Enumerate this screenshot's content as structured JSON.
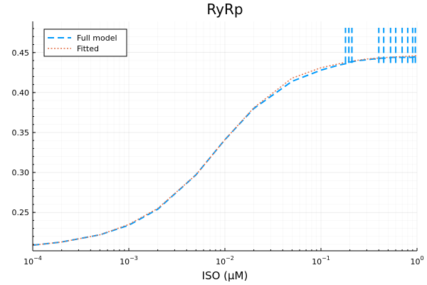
{
  "chart_data": {
    "type": "line",
    "title": "RyRp",
    "xlabel": "ISO (μM)",
    "ylabel": "",
    "xscale": "log",
    "xlim": [
      0.0001,
      1
    ],
    "ylim": [
      0.202,
      0.489
    ],
    "grid": true,
    "legend_position": "top-left",
    "x_ticks": [
      {
        "value": 0.0001,
        "base": "10",
        "exp": "−4"
      },
      {
        "value": 0.001,
        "base": "10",
        "exp": "−3"
      },
      {
        "value": 0.01,
        "base": "10",
        "exp": "−2"
      },
      {
        "value": 0.1,
        "base": "10",
        "exp": "−1"
      },
      {
        "value": 1,
        "base": "10",
        "exp": "0"
      }
    ],
    "y_ticks": [
      {
        "value": 0.25,
        "label": "0.25"
      },
      {
        "value": 0.3,
        "label": "0.30"
      },
      {
        "value": 0.35,
        "label": "0.35"
      },
      {
        "value": 0.4,
        "label": "0.40"
      },
      {
        "value": 0.45,
        "label": "0.45"
      }
    ],
    "series": [
      {
        "name": "Full model",
        "color": "#009AFA",
        "style": "dashed",
        "x": [
          0.0001,
          0.0002,
          0.0005,
          0.001,
          0.002,
          0.005,
          0.01,
          0.02,
          0.05,
          0.1,
          0.15,
          0.18,
          0.2,
          0.22,
          0.25,
          0.3,
          0.35,
          0.4,
          0.42,
          0.45,
          0.5,
          0.55,
          0.6,
          0.65,
          0.7,
          0.75,
          0.8,
          0.85,
          0.9,
          0.95,
          1.0
        ],
        "y": [
          0.209,
          0.213,
          0.222,
          0.234,
          0.254,
          0.297,
          0.341,
          0.38,
          0.414,
          0.428,
          0.434,
          0.436,
          0.438,
          0.439,
          0.44,
          0.441,
          0.442,
          0.442,
          0.443,
          0.443,
          0.443,
          0.444,
          0.444,
          0.444,
          0.444,
          0.444,
          0.444,
          0.444,
          0.444,
          0.445,
          0.445
        ]
      },
      {
        "name": "Fitted",
        "color": "#E26F46",
        "style": "dotted",
        "x": [
          0.0001,
          0.0002,
          0.0005,
          0.001,
          0.002,
          0.005,
          0.01,
          0.02,
          0.05,
          0.1,
          0.2,
          0.3,
          0.5,
          0.7,
          1.0
        ],
        "y": [
          0.209,
          0.213,
          0.222,
          0.235,
          0.255,
          0.297,
          0.341,
          0.381,
          0.418,
          0.431,
          0.439,
          0.442,
          0.444,
          0.445,
          0.446
        ]
      }
    ],
    "spikes": {
      "series": "Full model",
      "x": [
        0.18,
        0.195,
        0.21,
        0.4,
        0.45,
        0.53,
        0.6,
        0.7,
        0.8,
        0.9,
        0.96
      ],
      "y_low": 0.437,
      "y_high": 0.481
    }
  }
}
